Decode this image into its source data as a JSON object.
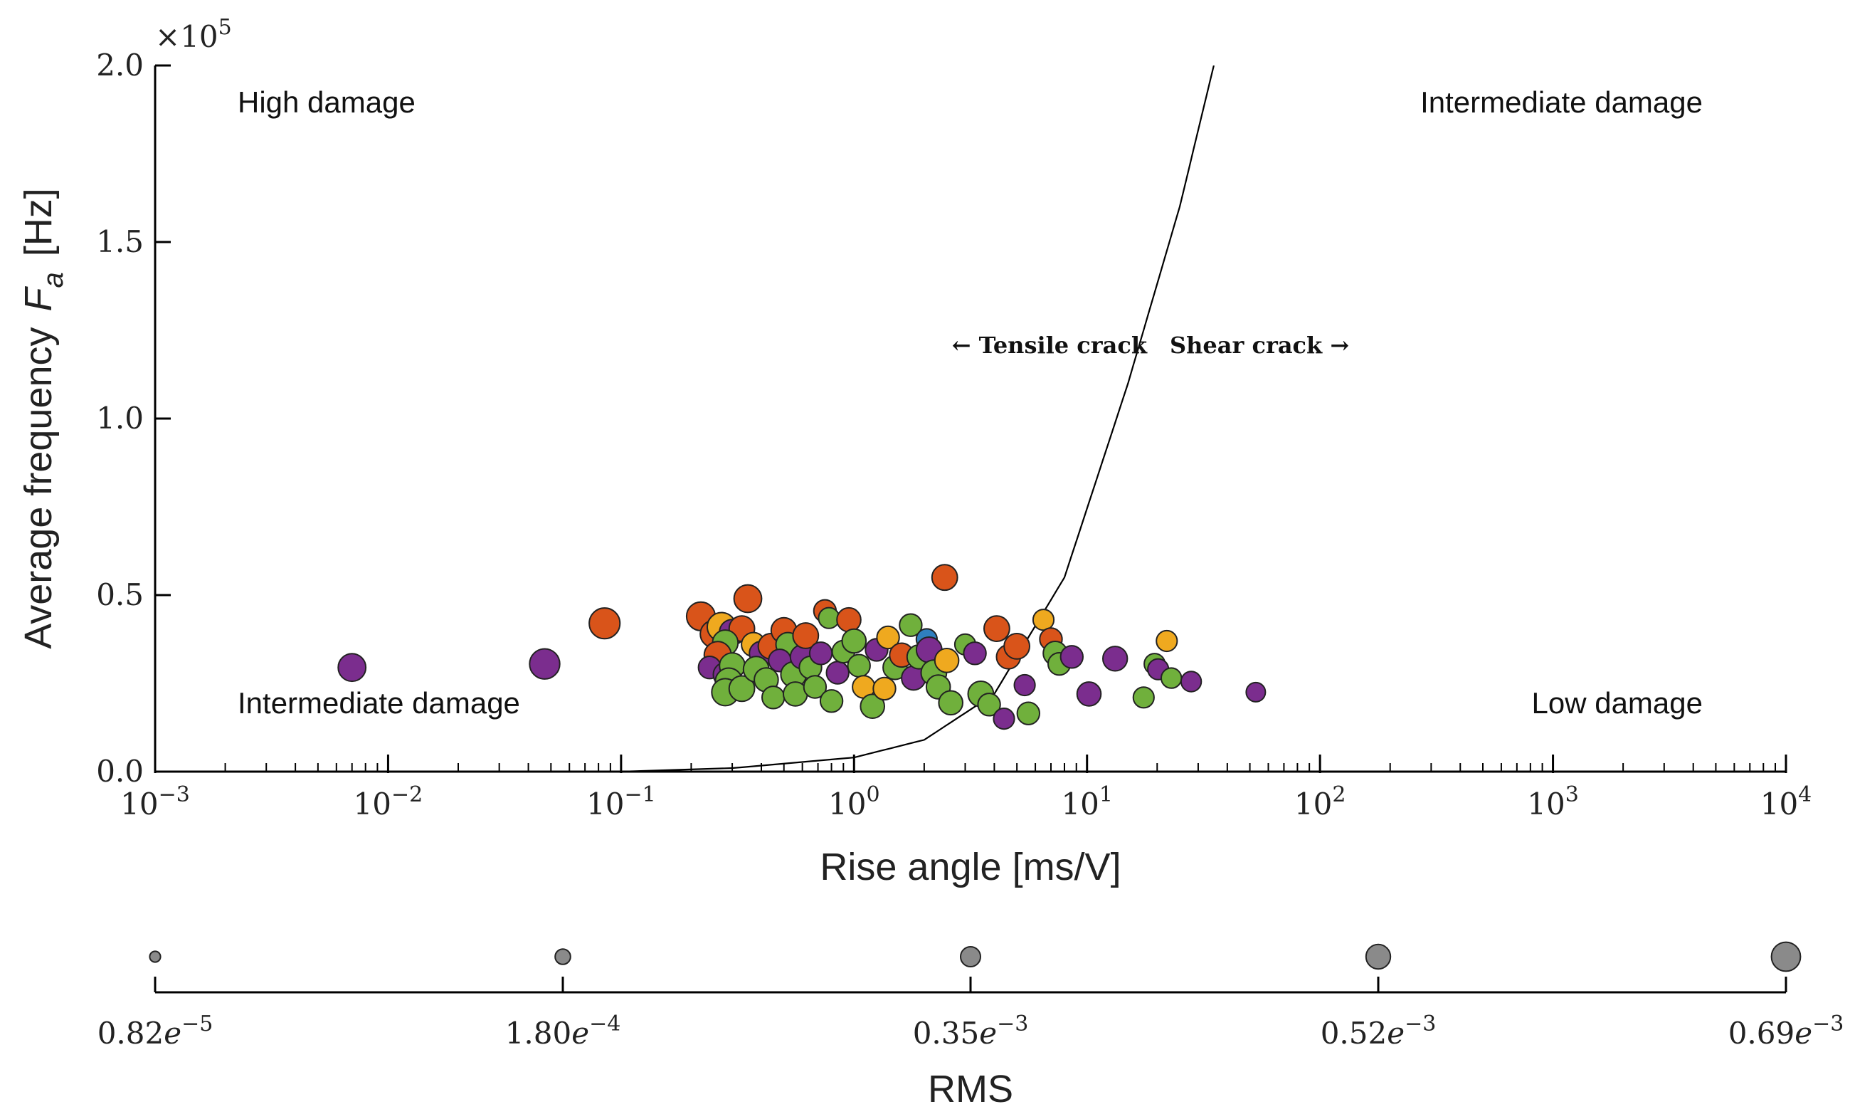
{
  "chart_data": {
    "type": "scatter",
    "title": "",
    "xlabel": "Rise angle [ms/V]",
    "ylabel_text": "Average frequency",
    "ylabel_symbol": "F",
    "ylabel_subscript": "a",
    "ylabel_unit": "[Hz]",
    "xscale": "log",
    "xlim": [
      0.001,
      10000
    ],
    "ylim": [
      0,
      200000
    ],
    "y_multiplier_base": "×10",
    "y_multiplier_exp": "5",
    "x_ticks": [
      {
        "value": 0.001,
        "base": "10",
        "exp": "−3"
      },
      {
        "value": 0.01,
        "base": "10",
        "exp": "−2"
      },
      {
        "value": 0.1,
        "base": "10",
        "exp": "−1"
      },
      {
        "value": 1,
        "base": "10",
        "exp": "0"
      },
      {
        "value": 10,
        "base": "10",
        "exp": "1"
      },
      {
        "value": 100,
        "base": "10",
        "exp": "2"
      },
      {
        "value": 1000,
        "base": "10",
        "exp": "3"
      },
      {
        "value": 10000,
        "base": "10",
        "exp": "4"
      }
    ],
    "y_ticks": [
      {
        "value": 0,
        "label": "0.0"
      },
      {
        "value": 50000,
        "label": "0.5"
      },
      {
        "value": 100000,
        "label": "1.0"
      },
      {
        "value": 150000,
        "label": "1.5"
      },
      {
        "value": 200000,
        "label": "2.0"
      }
    ],
    "region_labels": [
      {
        "text": "High damage",
        "position": "top-left"
      },
      {
        "text": "Intermediate damage",
        "position": "top-right"
      },
      {
        "text": "Intermediate damage",
        "position": "bottom-left"
      },
      {
        "text": "Low damage",
        "position": "bottom-right"
      }
    ],
    "boundary_curve": {
      "description": "exponential tensile/shear boundary",
      "points": [
        [
          0.1,
          0
        ],
        [
          0.3,
          1000
        ],
        [
          1,
          4000
        ],
        [
          2,
          9000
        ],
        [
          4,
          22000
        ],
        [
          8,
          55000
        ],
        [
          15,
          110000
        ],
        [
          25,
          160000
        ],
        [
          35,
          200000
        ]
      ]
    },
    "crack_labels": {
      "left": "← Tensile crack",
      "right": "Shear crack →"
    },
    "colors": {
      "purple": "#7b2d8e",
      "orange_red": "#d9541a",
      "yellow": "#efa91f",
      "green": "#70b03c",
      "blue": "#2f7fbf"
    },
    "points": [
      {
        "x": 0.007,
        "y": 29500,
        "c": "purple",
        "r": 0.52
      },
      {
        "x": 0.047,
        "y": 30500,
        "c": "purple",
        "r": 0.6
      },
      {
        "x": 0.085,
        "y": 42000,
        "c": "orange_red",
        "r": 0.62
      },
      {
        "x": 0.22,
        "y": 44000,
        "c": "orange_red",
        "r": 0.55
      },
      {
        "x": 0.25,
        "y": 39000,
        "c": "orange_red",
        "r": 0.5
      },
      {
        "x": 0.27,
        "y": 41000,
        "c": "yellow",
        "r": 0.55
      },
      {
        "x": 0.3,
        "y": 39500,
        "c": "purple",
        "r": 0.45
      },
      {
        "x": 0.33,
        "y": 40500,
        "c": "orange_red",
        "r": 0.45
      },
      {
        "x": 0.35,
        "y": 49000,
        "c": "orange_red",
        "r": 0.52
      },
      {
        "x": 0.28,
        "y": 36500,
        "c": "green",
        "r": 0.45
      },
      {
        "x": 0.26,
        "y": 33000,
        "c": "orange_red",
        "r": 0.5
      },
      {
        "x": 0.24,
        "y": 29500,
        "c": "purple",
        "r": 0.35
      },
      {
        "x": 0.28,
        "y": 27500,
        "c": "purple",
        "r": 0.4
      },
      {
        "x": 0.3,
        "y": 30000,
        "c": "green",
        "r": 0.45
      },
      {
        "x": 0.29,
        "y": 25500,
        "c": "green",
        "r": 0.5
      },
      {
        "x": 0.28,
        "y": 22500,
        "c": "green",
        "r": 0.5
      },
      {
        "x": 0.33,
        "y": 23500,
        "c": "green",
        "r": 0.45
      },
      {
        "x": 0.37,
        "y": 36000,
        "c": "yellow",
        "r": 0.4
      },
      {
        "x": 0.4,
        "y": 33500,
        "c": "purple",
        "r": 0.4
      },
      {
        "x": 0.38,
        "y": 29000,
        "c": "green",
        "r": 0.45
      },
      {
        "x": 0.42,
        "y": 26000,
        "c": "green",
        "r": 0.4
      },
      {
        "x": 0.45,
        "y": 21000,
        "c": "green",
        "r": 0.35
      },
      {
        "x": 0.44,
        "y": 35500,
        "c": "orange_red",
        "r": 0.45
      },
      {
        "x": 0.5,
        "y": 40000,
        "c": "orange_red",
        "r": 0.45
      },
      {
        "x": 0.52,
        "y": 36000,
        "c": "green",
        "r": 0.4
      },
      {
        "x": 0.48,
        "y": 31500,
        "c": "purple",
        "r": 0.35
      },
      {
        "x": 0.55,
        "y": 27500,
        "c": "green",
        "r": 0.45
      },
      {
        "x": 0.56,
        "y": 22000,
        "c": "green",
        "r": 0.4
      },
      {
        "x": 0.6,
        "y": 32500,
        "c": "purple",
        "r": 0.4
      },
      {
        "x": 0.62,
        "y": 38500,
        "c": "orange_red",
        "r": 0.45
      },
      {
        "x": 0.65,
        "y": 29500,
        "c": "green",
        "r": 0.35
      },
      {
        "x": 0.68,
        "y": 24000,
        "c": "green",
        "r": 0.35
      },
      {
        "x": 0.72,
        "y": 33500,
        "c": "purple",
        "r": 0.35
      },
      {
        "x": 0.75,
        "y": 45500,
        "c": "orange_red",
        "r": 0.35
      },
      {
        "x": 0.78,
        "y": 43500,
        "c": "green",
        "r": 0.3
      },
      {
        "x": 0.8,
        "y": 20000,
        "c": "green",
        "r": 0.35
      },
      {
        "x": 0.85,
        "y": 28000,
        "c": "purple",
        "r": 0.35
      },
      {
        "x": 0.9,
        "y": 34000,
        "c": "green",
        "r": 0.35
      },
      {
        "x": 0.95,
        "y": 43000,
        "c": "orange_red",
        "r": 0.4
      },
      {
        "x": 1.0,
        "y": 37000,
        "c": "green",
        "r": 0.4
      },
      {
        "x": 1.05,
        "y": 30000,
        "c": "green",
        "r": 0.35
      },
      {
        "x": 1.1,
        "y": 24000,
        "c": "yellow",
        "r": 0.35
      },
      {
        "x": 1.2,
        "y": 18500,
        "c": "green",
        "r": 0.4
      },
      {
        "x": 1.25,
        "y": 34500,
        "c": "purple",
        "r": 0.35
      },
      {
        "x": 1.35,
        "y": 23500,
        "c": "yellow",
        "r": 0.35
      },
      {
        "x": 1.4,
        "y": 38000,
        "c": "yellow",
        "r": 0.35
      },
      {
        "x": 1.5,
        "y": 29500,
        "c": "green",
        "r": 0.4
      },
      {
        "x": 1.6,
        "y": 33000,
        "c": "orange_red",
        "r": 0.4
      },
      {
        "x": 1.75,
        "y": 41500,
        "c": "green",
        "r": 0.35
      },
      {
        "x": 1.8,
        "y": 26500,
        "c": "purple",
        "r": 0.4
      },
      {
        "x": 1.9,
        "y": 32500,
        "c": "green",
        "r": 0.4
      },
      {
        "x": 2.05,
        "y": 37500,
        "c": "blue",
        "r": 0.3
      },
      {
        "x": 2.1,
        "y": 34500,
        "c": "purple",
        "r": 0.45
      },
      {
        "x": 2.2,
        "y": 28000,
        "c": "green",
        "r": 0.45
      },
      {
        "x": 2.3,
        "y": 24000,
        "c": "green",
        "r": 0.4
      },
      {
        "x": 2.45,
        "y": 55000,
        "c": "orange_red",
        "r": 0.45
      },
      {
        "x": 2.5,
        "y": 31500,
        "c": "yellow",
        "r": 0.4
      },
      {
        "x": 2.6,
        "y": 19500,
        "c": "green",
        "r": 0.4
      },
      {
        "x": 3.0,
        "y": 36000,
        "c": "green",
        "r": 0.3
      },
      {
        "x": 3.3,
        "y": 33500,
        "c": "purple",
        "r": 0.35
      },
      {
        "x": 3.5,
        "y": 22000,
        "c": "green",
        "r": 0.45
      },
      {
        "x": 3.8,
        "y": 19000,
        "c": "green",
        "r": 0.35
      },
      {
        "x": 4.1,
        "y": 40500,
        "c": "orange_red",
        "r": 0.45
      },
      {
        "x": 4.4,
        "y": 15000,
        "c": "purple",
        "r": 0.3
      },
      {
        "x": 4.6,
        "y": 32500,
        "c": "orange_red",
        "r": 0.4
      },
      {
        "x": 5.0,
        "y": 35500,
        "c": "orange_red",
        "r": 0.45
      },
      {
        "x": 5.4,
        "y": 24500,
        "c": "purple",
        "r": 0.3
      },
      {
        "x": 5.6,
        "y": 16500,
        "c": "green",
        "r": 0.35
      },
      {
        "x": 6.5,
        "y": 43000,
        "c": "yellow",
        "r": 0.3
      },
      {
        "x": 7.0,
        "y": 37500,
        "c": "orange_red",
        "r": 0.35
      },
      {
        "x": 7.3,
        "y": 33500,
        "c": "green",
        "r": 0.4
      },
      {
        "x": 7.6,
        "y": 30500,
        "c": "green",
        "r": 0.35
      },
      {
        "x": 8.6,
        "y": 32500,
        "c": "purple",
        "r": 0.35
      },
      {
        "x": 10.2,
        "y": 22000,
        "c": "purple",
        "r": 0.4
      },
      {
        "x": 13.2,
        "y": 32000,
        "c": "purple",
        "r": 0.42
      },
      {
        "x": 17.5,
        "y": 21000,
        "c": "green",
        "r": 0.3
      },
      {
        "x": 19.5,
        "y": 30500,
        "c": "green",
        "r": 0.3
      },
      {
        "x": 20.2,
        "y": 29000,
        "c": "purple",
        "r": 0.3
      },
      {
        "x": 22.0,
        "y": 37000,
        "c": "yellow",
        "r": 0.3
      },
      {
        "x": 23.0,
        "y": 26500,
        "c": "green",
        "r": 0.28
      },
      {
        "x": 28.0,
        "y": 25500,
        "c": "purple",
        "r": 0.28
      },
      {
        "x": 53.0,
        "y": 22500,
        "c": "purple",
        "r": 0.25
      }
    ]
  },
  "size_legend": {
    "label": "RMS",
    "entries": [
      {
        "mantissa": "0.82",
        "exp": "−5",
        "r": 0.1
      },
      {
        "mantissa": "1.80",
        "exp": "−4",
        "r": 0.3
      },
      {
        "mantissa": "0.35",
        "exp": "−3",
        "r": 0.5
      },
      {
        "mantissa": "0.52",
        "exp": "−3",
        "r": 0.7
      },
      {
        "mantissa": "0.69",
        "exp": "−3",
        "r": 0.9
      }
    ]
  }
}
